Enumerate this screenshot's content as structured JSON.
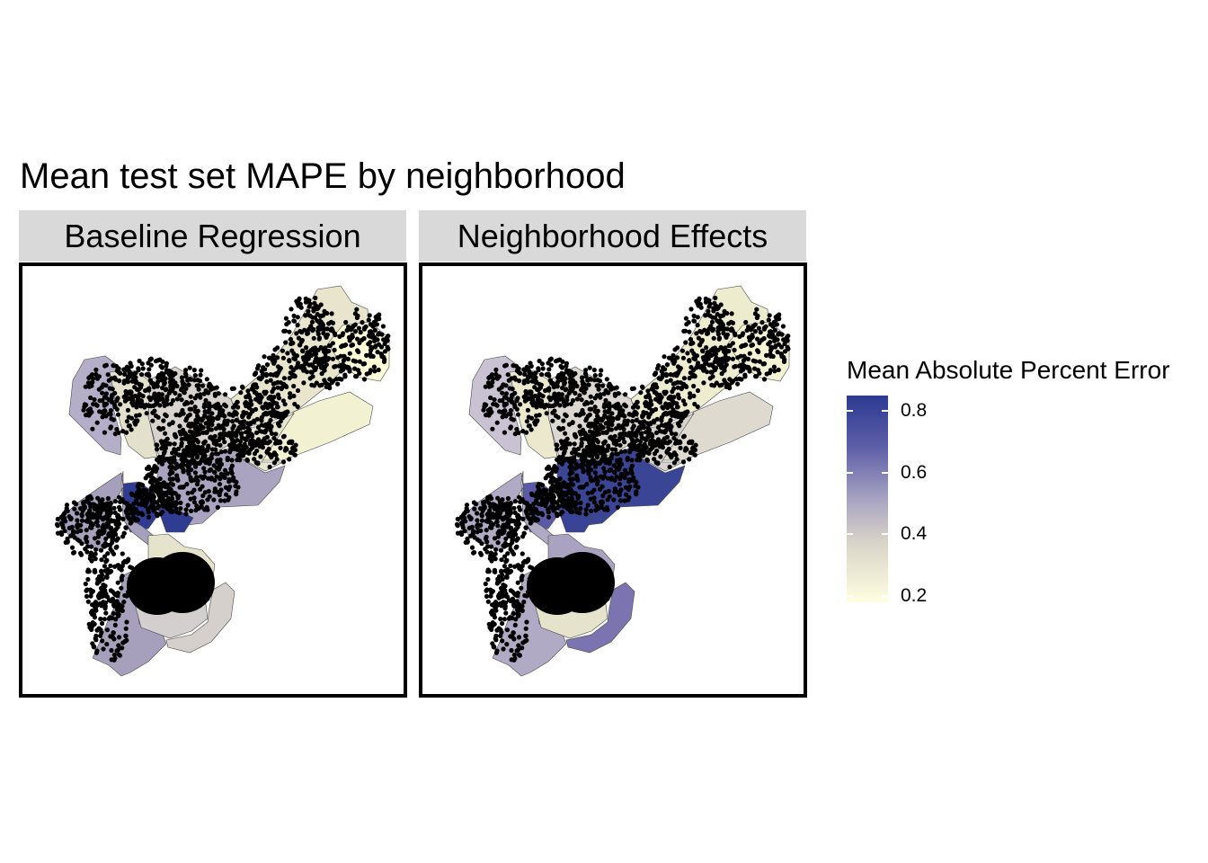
{
  "title": "Mean test set MAPE by neighborhood",
  "facets": [
    {
      "label": "Baseline Regression",
      "fills": {
        "nw": "#b4aec8",
        "rox": "#e3e0cc",
        "nphil": "#d8d3cf",
        "ne": "#e8e5cc",
        "farne": "#fcfcd8",
        "ne2": "#f2f1d2",
        "riv": "#e9e6cf",
        "cen": "#aaa4c1",
        "wp": "#2f3c91",
        "cc": "#2f3c91",
        "sw": "#a6a0bd",
        "sp": "#e6e3cd",
        "ss": "#d4cfcf",
        "nav": "#d6d0cc"
      }
    },
    {
      "label": "Neighborhood Effects",
      "fills": {
        "nw": "#c8c2d2",
        "rox": "#ebe8cd",
        "nphil": "#dcd7d0",
        "ne": "#eeeccf",
        "farne": "#f4f3d3",
        "ne2": "#dedad0",
        "riv": "#d8d3cf",
        "cen": "#3b4596",
        "wp": "#5a5aa6",
        "cc": "#3a4496",
        "sw": "#b0aac4",
        "sp": "#a9a3c1",
        "ss": "#e6e3cd",
        "nav": "#7b74b0"
      }
    }
  ],
  "legend": {
    "title": "Mean Absolute Percent Error",
    "ticks": [
      {
        "label": "0.8",
        "value": 0.8
      },
      {
        "label": "0.6",
        "value": 0.6
      },
      {
        "label": "0.4",
        "value": 0.4
      },
      {
        "label": "0.2",
        "value": 0.2
      }
    ],
    "range": [
      0.18,
      0.85
    ],
    "colors": [
      "#2b3a91",
      "#5e5ea8",
      "#a7a3c2",
      "#d7d2c8",
      "#ffffe0"
    ]
  }
}
